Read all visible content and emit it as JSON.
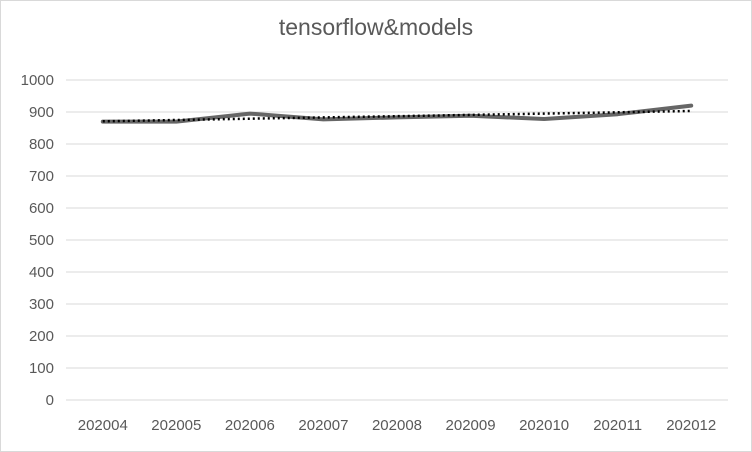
{
  "chart_data": {
    "type": "line",
    "title": "tensorflow&models",
    "xlabel": "",
    "ylabel": "",
    "categories": [
      "202004",
      "202005",
      "202006",
      "202007",
      "202008",
      "202009",
      "202010",
      "202011",
      "202012"
    ],
    "ylim": [
      0,
      1000
    ],
    "yticks": [
      "0",
      "100",
      "200",
      "300",
      "400",
      "500",
      "600",
      "700",
      "800",
      "900",
      "1000"
    ],
    "grid": true,
    "legend": "none",
    "series": [
      {
        "style": "solid",
        "color": "#666666",
        "values": [
          870,
          870,
          895,
          877,
          883,
          888,
          878,
          893,
          920
        ]
      },
      {
        "style": "dotted",
        "trendline": "linear",
        "color": "#000000",
        "values": [
          871,
          875,
          879,
          883,
          887,
          891,
          895,
          899,
          903
        ]
      }
    ]
  }
}
